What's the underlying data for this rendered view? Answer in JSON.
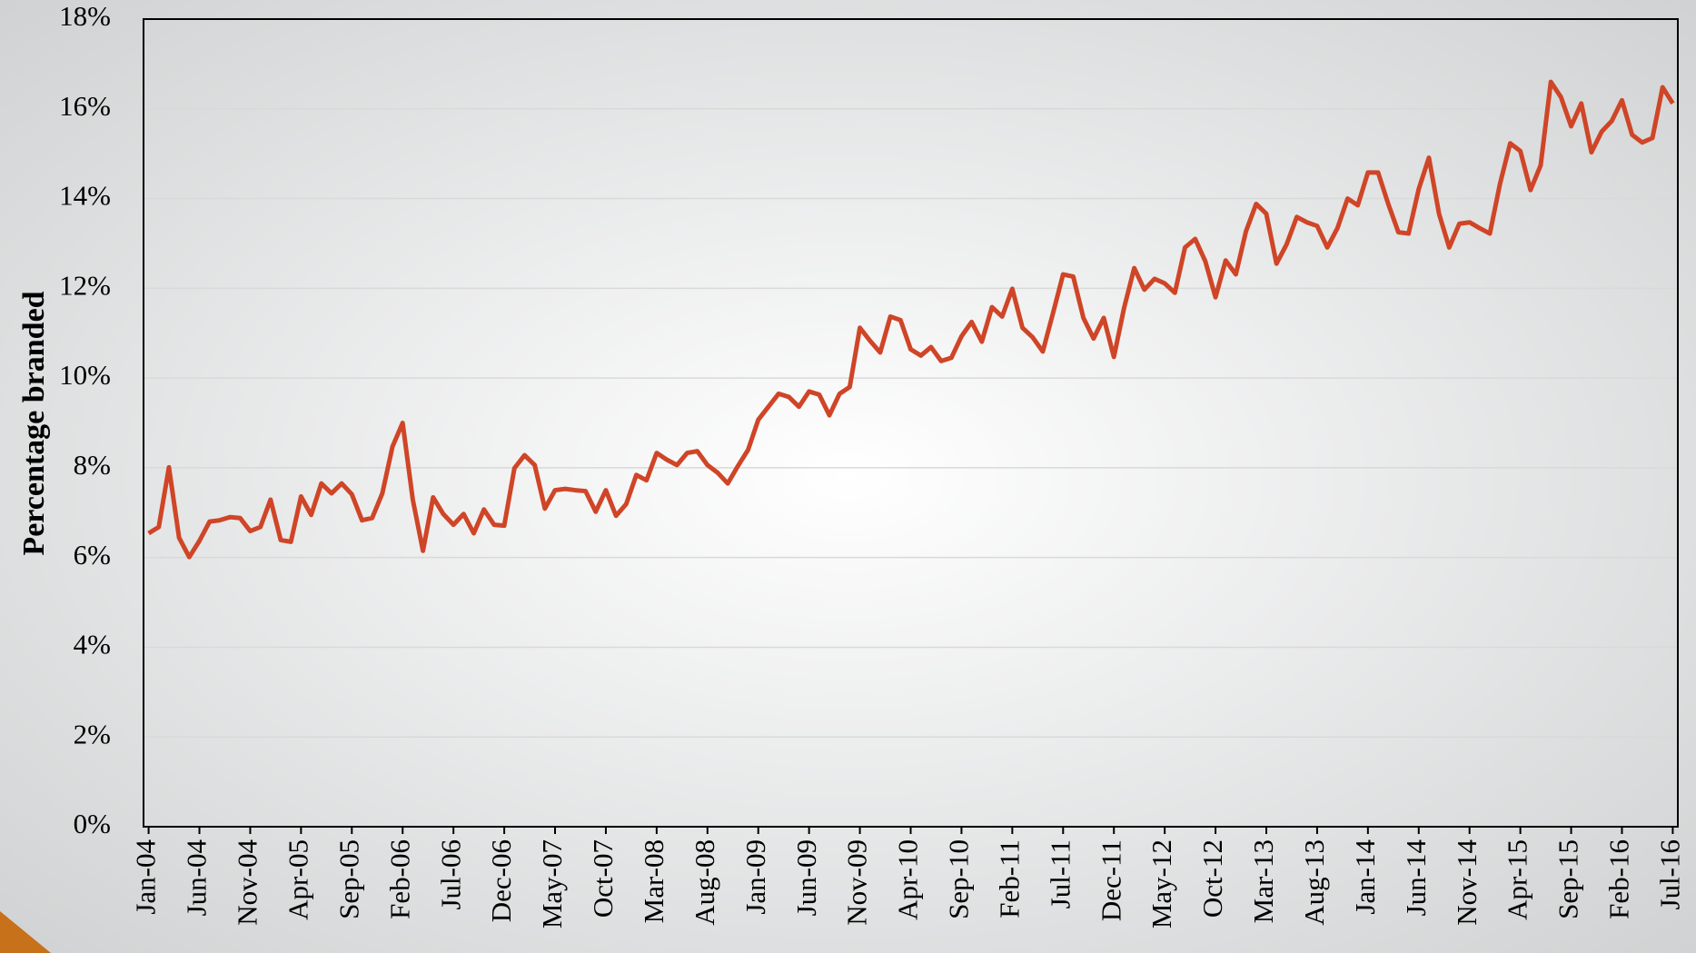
{
  "chart_data": {
    "type": "line",
    "y_label": "Percentage branded",
    "categories": [
      "Jan-04",
      null,
      null,
      null,
      null,
      "Jun-04",
      null,
      null,
      null,
      null,
      "Nov-04",
      null,
      null,
      null,
      null,
      "Apr-05",
      null,
      null,
      null,
      null,
      "Sep-05",
      null,
      null,
      null,
      null,
      "Feb-06",
      null,
      null,
      null,
      null,
      "Jul-06",
      null,
      null,
      null,
      null,
      "Dec-06",
      null,
      null,
      null,
      null,
      "May-07",
      null,
      null,
      null,
      null,
      "Oct-07",
      null,
      null,
      null,
      null,
      "Mar-08",
      null,
      null,
      null,
      null,
      "Aug-08",
      null,
      null,
      null,
      null,
      "Jan-09",
      null,
      null,
      null,
      null,
      "Jun-09",
      null,
      null,
      null,
      null,
      "Nov-09",
      null,
      null,
      null,
      null,
      "Apr-10",
      null,
      null,
      null,
      null,
      "Sep-10",
      null,
      null,
      null,
      null,
      "Feb-11",
      null,
      null,
      null,
      null,
      "Jul-11",
      null,
      null,
      null,
      null,
      "Dec-11",
      null,
      null,
      null,
      null,
      "May-12",
      null,
      null,
      null,
      null,
      "Oct-12",
      null,
      null,
      null,
      null,
      "Mar-13",
      null,
      null,
      null,
      null,
      "Aug-13",
      null,
      null,
      null,
      null,
      "Jan-14",
      null,
      null,
      null,
      null,
      "Jun-14",
      null,
      null,
      null,
      null,
      "Nov-14",
      null,
      null,
      null,
      null,
      "Apr-15",
      null,
      null,
      null,
      null,
      "Sep-15",
      null,
      null,
      null,
      null,
      "Feb-16",
      null,
      null,
      null,
      null,
      "Jul-16"
    ],
    "series": [
      {
        "name": "Percentage branded",
        "color": "#cf4527",
        "values": [
          6.54,
          6.68,
          8.01,
          6.44,
          6.01,
          6.37,
          6.8,
          6.83,
          6.9,
          6.88,
          6.59,
          6.68,
          7.29,
          6.39,
          6.35,
          7.36,
          6.95,
          7.65,
          7.43,
          7.65,
          7.41,
          6.83,
          6.88,
          7.43,
          8.47,
          9.0,
          7.29,
          6.15,
          7.34,
          6.97,
          6.73,
          6.97,
          6.54,
          7.07,
          6.73,
          6.71,
          7.99,
          8.28,
          8.06,
          7.09,
          7.5,
          7.53,
          7.5,
          7.48,
          7.02,
          7.5,
          6.93,
          7.19,
          7.84,
          7.72,
          8.33,
          8.18,
          8.06,
          8.33,
          8.37,
          8.06,
          7.89,
          7.65,
          8.04,
          8.4,
          9.07,
          9.36,
          9.65,
          9.58,
          9.36,
          9.7,
          9.63,
          9.17,
          9.65,
          9.8,
          11.12,
          10.83,
          10.57,
          11.37,
          11.29,
          10.64,
          10.5,
          10.69,
          10.38,
          10.45,
          10.93,
          11.25,
          10.81,
          11.58,
          11.37,
          11.99,
          11.12,
          10.91,
          10.59,
          11.44,
          12.31,
          12.26,
          11.34,
          10.88,
          11.34,
          10.47,
          11.56,
          12.45,
          11.97,
          12.21,
          12.11,
          11.9,
          12.91,
          13.1,
          12.6,
          11.8,
          12.62,
          12.31,
          13.27,
          13.88,
          13.66,
          12.55,
          12.98,
          13.59,
          13.47,
          13.39,
          12.91,
          13.34,
          14.0,
          13.85,
          14.58,
          14.58,
          13.88,
          13.25,
          13.22,
          14.21,
          14.91,
          13.66,
          12.91,
          13.44,
          13.47,
          13.34,
          13.22,
          14.33,
          15.23,
          15.06,
          14.19,
          14.74,
          16.6,
          16.26,
          15.61,
          16.12,
          15.03,
          15.49,
          15.73,
          16.19,
          15.42,
          15.25,
          15.35,
          16.48,
          16.12
        ]
      }
    ],
    "ylim": [
      0,
      18
    ],
    "yticks": [
      {
        "value": 0,
        "label": "0%"
      },
      {
        "value": 2,
        "label": "2%"
      },
      {
        "value": 4,
        "label": "4%"
      },
      {
        "value": 6,
        "label": "6%"
      },
      {
        "value": 8,
        "label": "8%"
      },
      {
        "value": 10,
        "label": "10%"
      },
      {
        "value": 12,
        "label": "12%"
      },
      {
        "value": 14,
        "label": "14%"
      },
      {
        "value": 16,
        "label": "16%"
      },
      {
        "value": 18,
        "label": "18%"
      }
    ],
    "grid": true
  }
}
